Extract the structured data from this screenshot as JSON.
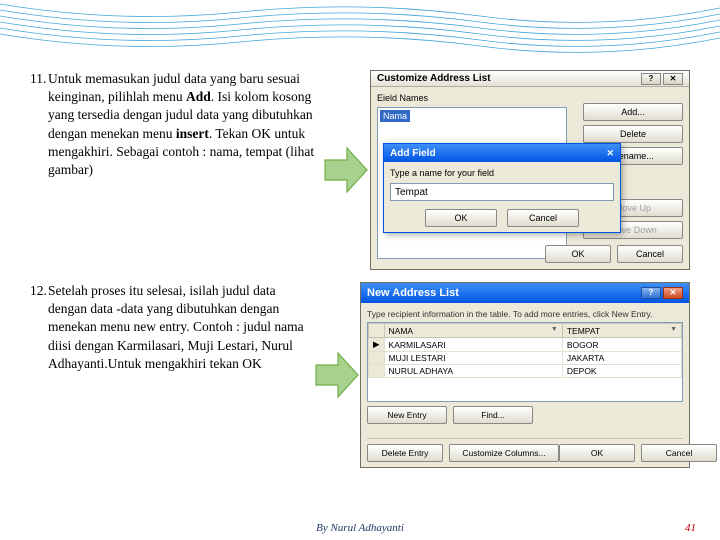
{
  "para11": {
    "num": "11.",
    "text": "Untuk memasukan judul data yang baru sesuai keinginan, pilihlah menu <b>Add</b>. Isi kolom kosong yang tersedia dengan judul data yang dibutuhkan dengan menekan menu <b>insert</b>. Tekan OK untuk mengakhiri. Sebagai contoh : nama, tempat (lihat gambar)"
  },
  "para12": {
    "num": "12.",
    "text": "Setelah proses itu selesai, isilah judul data dengan data -data yang dibutuhkan dengan menekan menu new entry. Contoh : judul nama diisi dengan Karmilasari, Muji Lestari, Nurul Adhayanti.Untuk mengakhiri tekan OK"
  },
  "dlg1": {
    "title": "Customize Address List",
    "fieldLabel": "Eield Names",
    "listItem": "Nama",
    "buttons": {
      "add": "Add...",
      "delete": "Delete",
      "rename": "Rename...",
      "moveUp": "Move Up",
      "moveDown": "Move Down",
      "ok": "OK",
      "cancel": "Cancel"
    }
  },
  "addField": {
    "title": "Add Field",
    "prompt": "Type a name for your field",
    "value": "Tempat",
    "ok": "OK",
    "cancel": "Cancel"
  },
  "dlg2": {
    "title": "New Address List",
    "hint": "Type recipient information in the table. To add more entries, click New Entry.",
    "columns": [
      "NAMA",
      "TEMPAT"
    ],
    "rows": [
      [
        "KARMILASARI",
        "BOGOR"
      ],
      [
        "MUJI LESTARI",
        "JAKARTA"
      ],
      [
        "NURUL ADHAYA",
        "DEPOK"
      ]
    ],
    "buttons": {
      "newEntry": "New Entry",
      "find": "Find...",
      "delete": "Delete Entry",
      "customize": "Customize Columns...",
      "ok": "OK",
      "cancel": "Cancel"
    }
  },
  "footer": {
    "by": "By Nurul Adhayanti",
    "page": "41"
  },
  "waves": {
    "stroke": "#44a6d8",
    "lines": [
      "M 0 4 Q 120 24, 240 12 T 480 16 T 720 8",
      "M 0 10 Q 120 30, 240 18 T 480 22 T 720 14",
      "M 0 16 Q 120 36, 240 24 T 480 28 T 720 20",
      "M 0 22 Q 120 42, 240 30 T 480 34 T 720 26",
      "M 0 28 Q 120 48, 240 36 T 480 40 T 720 32",
      "M 0 34 Q 120 54, 240 42 T 480 46 T 720 38"
    ]
  },
  "arrow": {
    "stroke": "#70ad47",
    "fill": "#a9d18e"
  }
}
